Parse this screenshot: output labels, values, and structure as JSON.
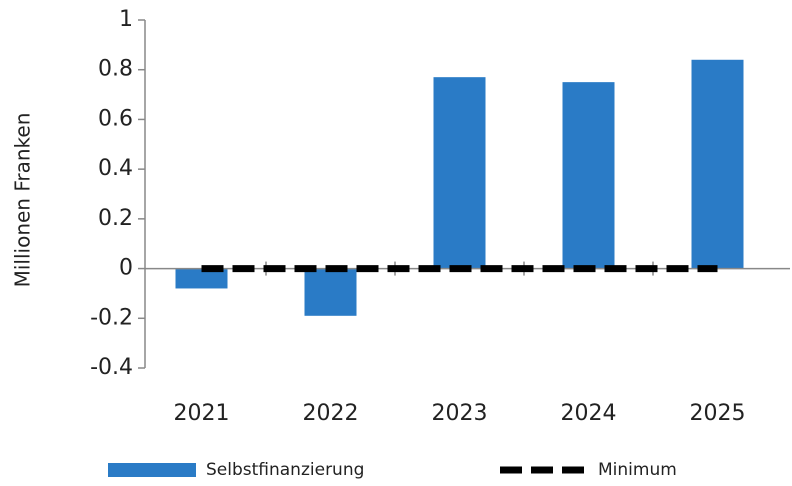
{
  "chart_data": {
    "type": "bar",
    "ylabel": "Millionen Franken",
    "categories": [
      "2021",
      "2022",
      "2023",
      "2024",
      "2025"
    ],
    "series": [
      {
        "name": "Selbstfinanzierung",
        "type": "bar",
        "color": "#2a7bc6",
        "values": [
          -0.08,
          -0.19,
          0.77,
          0.75,
          0.84
        ]
      },
      {
        "name": "Minimum",
        "type": "line",
        "dashed": true,
        "color": "#000000",
        "values": [
          0,
          0,
          0,
          0,
          0
        ]
      }
    ],
    "ylim": [
      -0.4,
      1
    ],
    "yticks": [
      -0.4,
      -0.2,
      0,
      0.2,
      0.4,
      0.6,
      0.8,
      1
    ],
    "grid": false,
    "legend": "bottom"
  }
}
